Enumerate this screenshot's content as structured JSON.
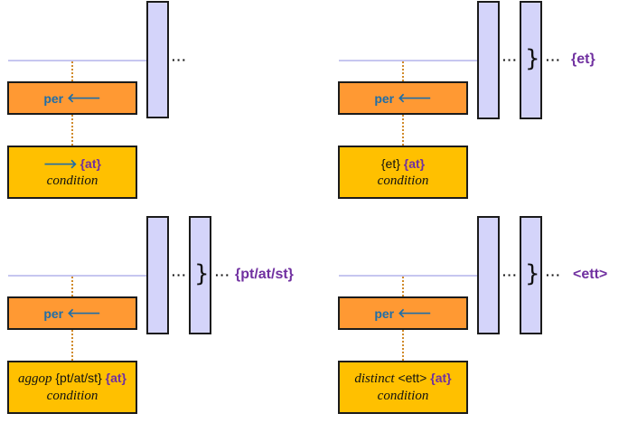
{
  "panels": {
    "top_left": {
      "per_label": "per",
      "arrow": "🡐",
      "cond": {
        "arrow": "🡒",
        "set": "{at}",
        "line2": "condition"
      },
      "dots": "···"
    },
    "top_right": {
      "per_label": "per",
      "arrow": "🡐",
      "cond": {
        "prefix": "{et}",
        "set": "{at}",
        "line2": "condition"
      },
      "dots1": "···",
      "brace": "}",
      "dots2": "···",
      "output": "{et}"
    },
    "bottom_left": {
      "per_label": "per",
      "arrow": "🡐",
      "cond": {
        "op": "aggop",
        "prefix": "{pt/at/st}",
        "set": "{at}",
        "line2": "condition"
      },
      "dots1": "···",
      "brace": "}",
      "dots2": "···",
      "output": "{pt/at/st}"
    },
    "bottom_right": {
      "per_label": "per",
      "arrow": "🡐",
      "cond": {
        "op": "distinct",
        "prefix": "<ett>",
        "set": "{at}",
        "line2": "condition"
      },
      "dots1": "···",
      "brace": "}",
      "dots2": "···",
      "output": "<ett>"
    }
  },
  "colors": {
    "per_fill": "#ff9933",
    "condition_fill": "#ffc000",
    "bar_fill": "#d4d4fa",
    "keyword_blue": "#1f6ea8",
    "set_purple": "#7030a0"
  }
}
